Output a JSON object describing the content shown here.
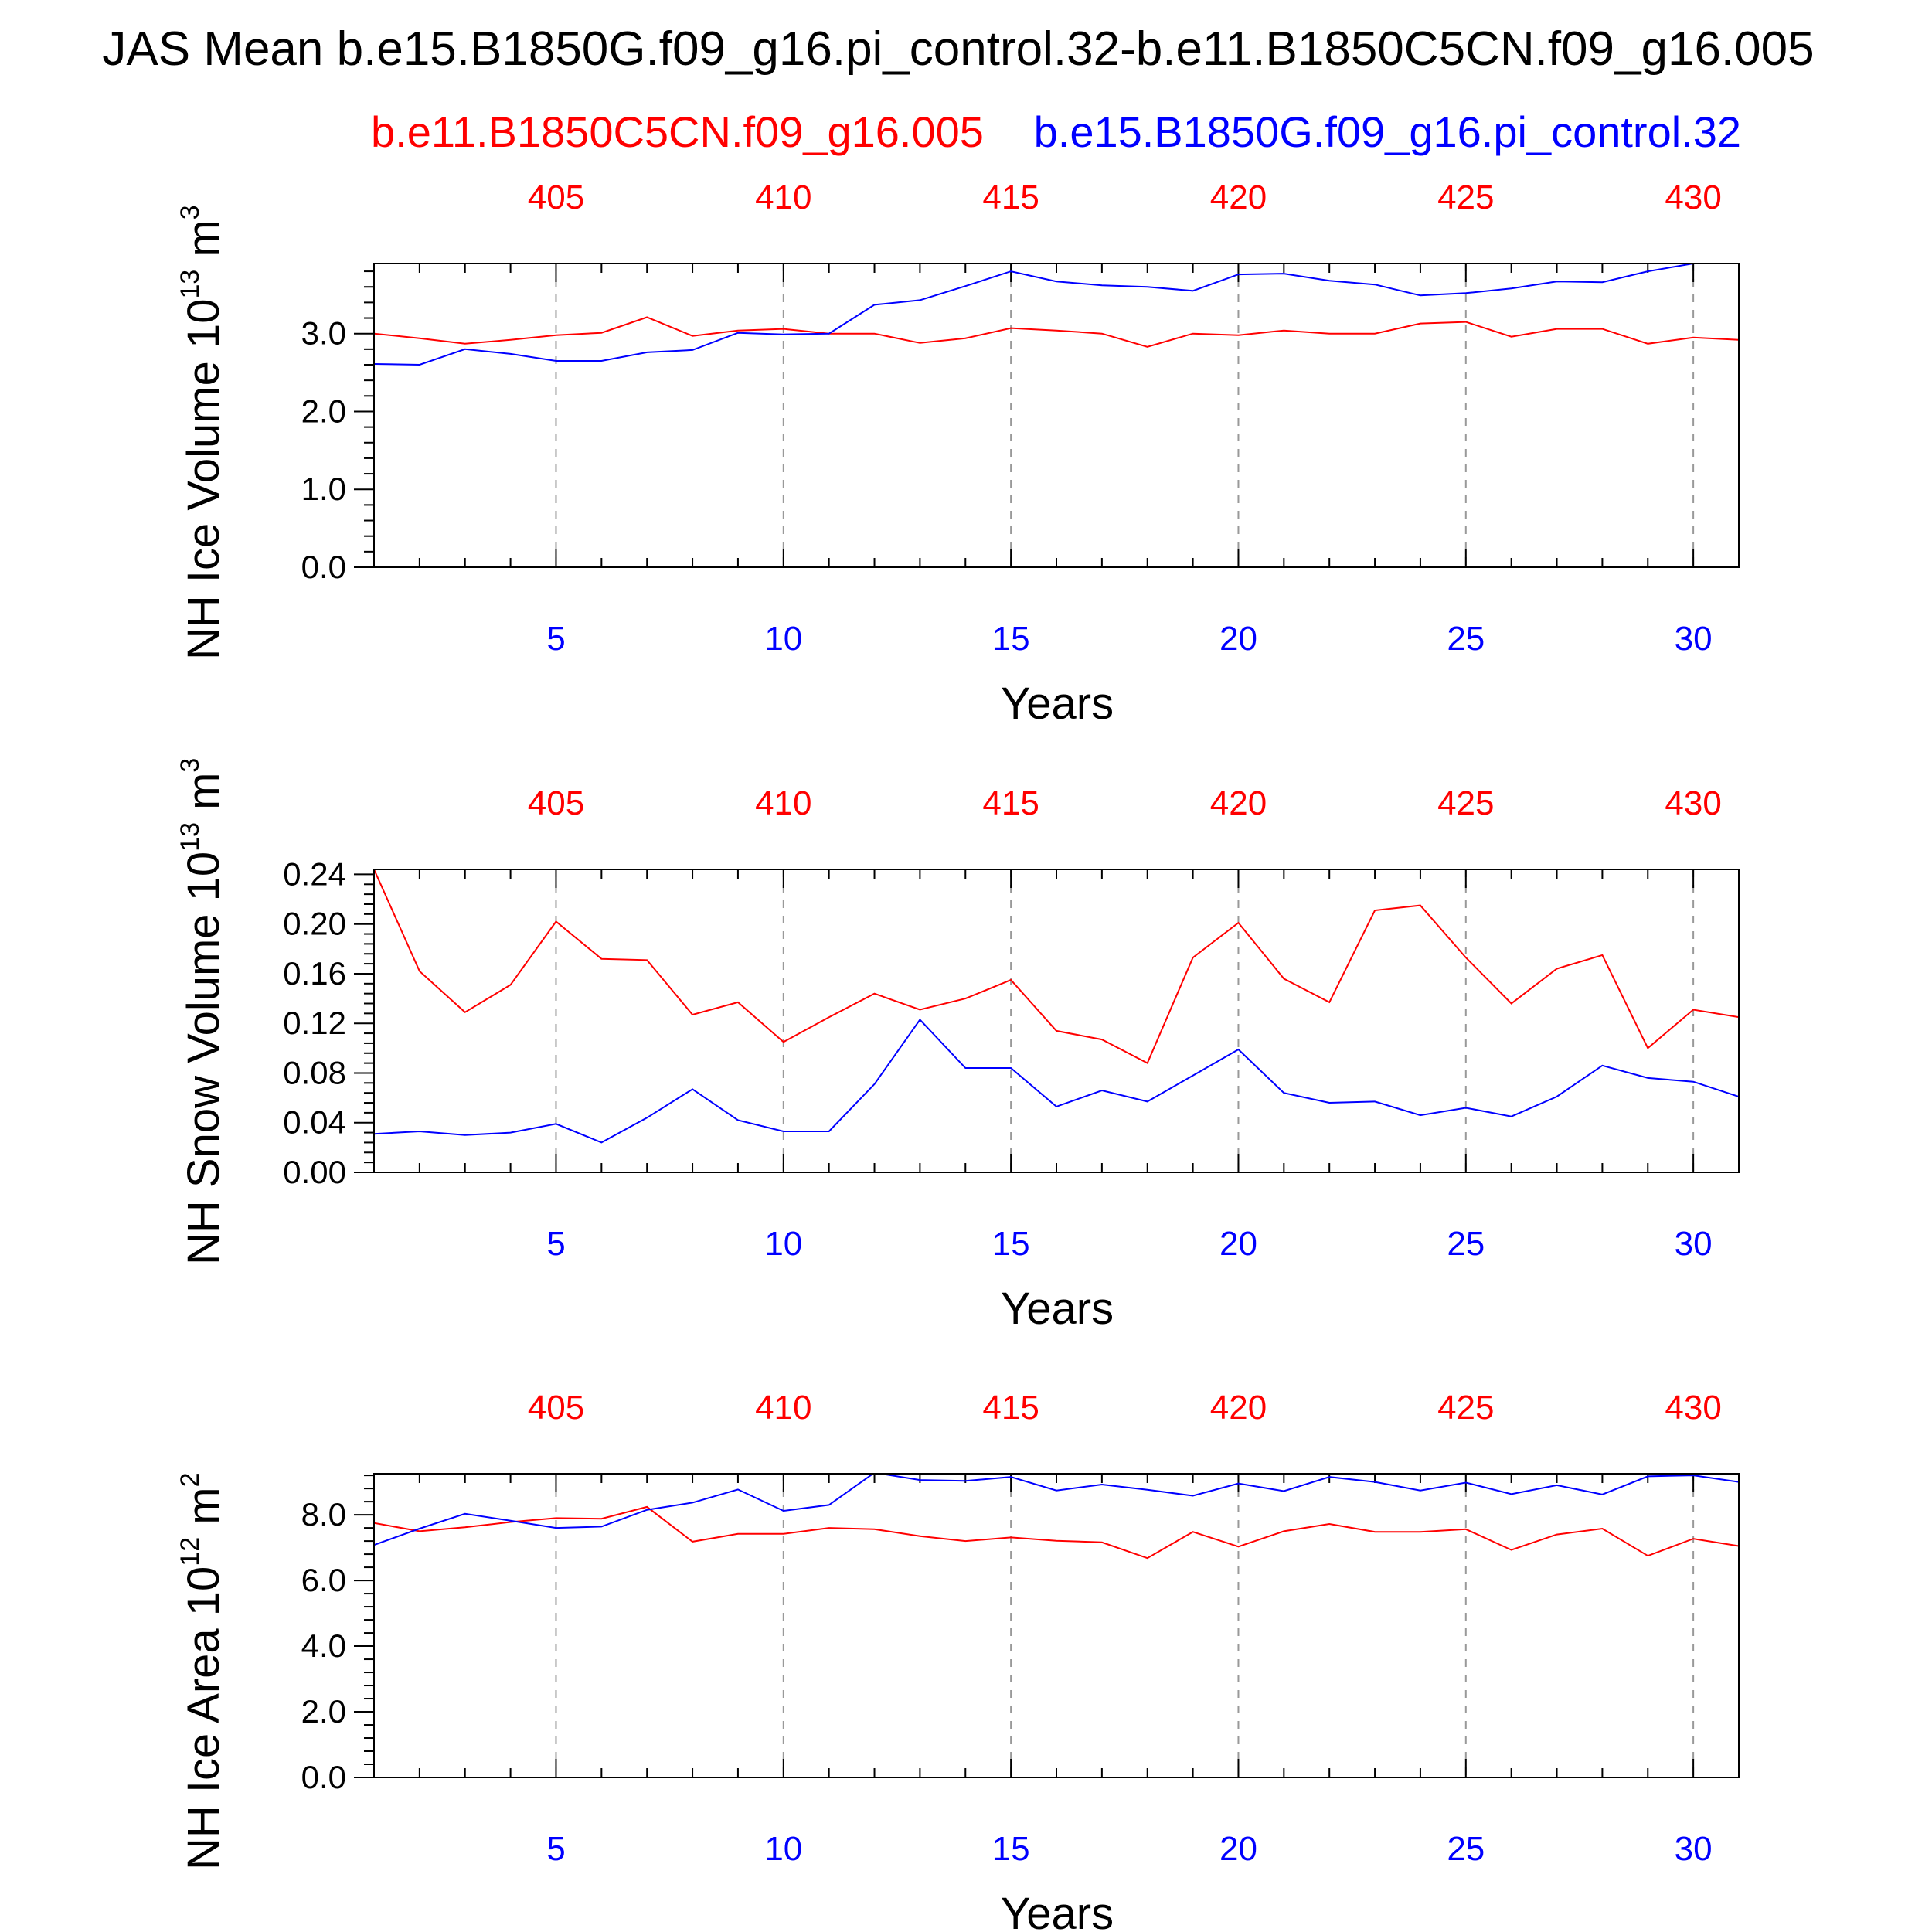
{
  "header": {
    "title": "JAS Mean b.e15.B1850G.f09_g16.pi_control.32-b.e11.B1850C5CN.f09_g16.005",
    "case_red": "b.e11.B1850C5CN.f09_g16.005",
    "case_blue": "b.e15.B1850G.f09_g16.pi_control.32"
  },
  "colors": {
    "red_series": "#ff0000",
    "blue_series": "#0000ff",
    "axis": "#000000",
    "grid": "#999999"
  },
  "chart_data": [
    {
      "type": "line",
      "ylabel_main": "NH Ice Volume 10",
      "ylabel_exp": "13",
      "ylabel_unit": "m",
      "ylabel_unit_exp": "3",
      "xlabel": "Years",
      "xlim": [
        1,
        31
      ],
      "ylim": [
        0,
        3.9
      ],
      "yticks": [
        0,
        1,
        2,
        3
      ],
      "ytick_labels": [
        "0.0",
        "1.0",
        "2.0",
        "3.0"
      ],
      "xticks_bottom": [
        5,
        10,
        15,
        20,
        25,
        30
      ],
      "xtick_labels_bottom": [
        "5",
        "10",
        "15",
        "20",
        "25",
        "30"
      ],
      "xtick_labels_top": [
        "405",
        "410",
        "415",
        "420",
        "425",
        "430"
      ],
      "grid": "vertical dashed at major x ticks",
      "x": [
        1,
        2,
        3,
        4,
        5,
        6,
        7,
        8,
        9,
        10,
        11,
        12,
        13,
        14,
        15,
        16,
        17,
        18,
        19,
        20,
        21,
        22,
        23,
        24,
        25,
        26,
        27,
        28,
        29,
        30,
        31
      ],
      "series": [
        {
          "color": "#ff0000",
          "values": [
            3.0,
            2.94,
            2.87,
            2.92,
            2.98,
            3.01,
            3.21,
            2.97,
            3.04,
            3.06,
            3.0,
            3.0,
            2.88,
            2.94,
            3.07,
            3.04,
            3.0,
            2.83,
            3.0,
            2.98,
            3.04,
            3.0,
            3.0,
            3.13,
            3.15,
            2.96,
            3.06,
            3.06,
            2.87,
            2.95,
            2.92
          ]
        },
        {
          "color": "#0000ff",
          "values": [
            2.61,
            2.6,
            2.8,
            2.74,
            2.65,
            2.65,
            2.76,
            2.79,
            3.01,
            2.99,
            3.0,
            3.37,
            3.43,
            3.61,
            3.8,
            3.67,
            3.62,
            3.6,
            3.55,
            3.76,
            3.77,
            3.68,
            3.63,
            3.49,
            3.52,
            3.58,
            3.67,
            3.66,
            3.8,
            3.9,
            3.96
          ]
        }
      ]
    },
    {
      "type": "line",
      "ylabel_main": "NH Snow Volume 10",
      "ylabel_exp": "13",
      "ylabel_unit": "m",
      "ylabel_unit_exp": "3",
      "xlabel": "Years",
      "xlim": [
        1,
        31
      ],
      "ylim": [
        0,
        0.244
      ],
      "yticks": [
        0,
        0.04,
        0.08,
        0.12,
        0.16,
        0.2,
        0.24
      ],
      "ytick_labels": [
        "0.00",
        "0.04",
        "0.08",
        "0.12",
        "0.16",
        "0.20",
        "0.24"
      ],
      "xticks_bottom": [
        5,
        10,
        15,
        20,
        25,
        30
      ],
      "xtick_labels_bottom": [
        "5",
        "10",
        "15",
        "20",
        "25",
        "30"
      ],
      "xtick_labels_top": [
        "405",
        "410",
        "415",
        "420",
        "425",
        "430"
      ],
      "grid": "vertical dashed at major x ticks",
      "x": [
        1,
        2,
        3,
        4,
        5,
        6,
        7,
        8,
        9,
        10,
        11,
        12,
        13,
        14,
        15,
        16,
        17,
        18,
        19,
        20,
        21,
        22,
        23,
        24,
        25,
        26,
        27,
        28,
        29,
        30,
        31
      ],
      "series": [
        {
          "color": "#ff0000",
          "values": [
            0.244,
            0.162,
            0.129,
            0.151,
            0.202,
            0.172,
            0.171,
            0.127,
            0.137,
            0.105,
            0.125,
            0.144,
            0.131,
            0.14,
            0.155,
            0.114,
            0.107,
            0.088,
            0.173,
            0.201,
            0.156,
            0.137,
            0.211,
            0.215,
            0.173,
            0.136,
            0.164,
            0.175,
            0.1,
            0.131,
            0.125
          ]
        },
        {
          "color": "#0000ff",
          "values": [
            0.031,
            0.033,
            0.03,
            0.032,
            0.039,
            0.024,
            0.044,
            0.067,
            0.042,
            0.033,
            0.033,
            0.071,
            0.123,
            0.084,
            0.084,
            0.053,
            0.066,
            0.057,
            0.078,
            0.099,
            0.064,
            0.056,
            0.057,
            0.046,
            0.052,
            0.045,
            0.061,
            0.086,
            0.076,
            0.073,
            0.061
          ]
        }
      ]
    },
    {
      "type": "line",
      "ylabel_main": "NH Ice Area 10",
      "ylabel_exp": "12",
      "ylabel_unit": "m",
      "ylabel_unit_exp": "2",
      "xlabel": "Years",
      "xlim": [
        1,
        31
      ],
      "ylim": [
        0,
        9.25
      ],
      "yticks": [
        0,
        2,
        4,
        6,
        8
      ],
      "ytick_labels": [
        "0.0",
        "2.0",
        "4.0",
        "6.0",
        "8.0"
      ],
      "xticks_bottom": [
        5,
        10,
        15,
        20,
        25,
        30
      ],
      "xtick_labels_bottom": [
        "5",
        "10",
        "15",
        "20",
        "25",
        "30"
      ],
      "xtick_labels_top": [
        "405",
        "410",
        "415",
        "420",
        "425",
        "430"
      ],
      "grid": "vertical dashed at major x ticks",
      "x": [
        1,
        2,
        3,
        4,
        5,
        6,
        7,
        8,
        9,
        10,
        11,
        12,
        13,
        14,
        15,
        16,
        17,
        18,
        19,
        20,
        21,
        22,
        23,
        24,
        25,
        26,
        27,
        28,
        29,
        30,
        31
      ],
      "series": [
        {
          "color": "#ff0000",
          "values": [
            7.75,
            7.5,
            7.62,
            7.78,
            7.9,
            7.88,
            8.24,
            7.18,
            7.42,
            7.42,
            7.6,
            7.56,
            7.35,
            7.2,
            7.31,
            7.21,
            7.16,
            6.68,
            7.48,
            7.03,
            7.5,
            7.72,
            7.48,
            7.48,
            7.56,
            6.93,
            7.4,
            7.58,
            6.75,
            7.27,
            7.05
          ]
        },
        {
          "color": "#0000ff",
          "values": [
            7.08,
            7.58,
            8.03,
            7.82,
            7.6,
            7.64,
            8.15,
            8.37,
            8.77,
            8.12,
            8.3,
            9.28,
            9.06,
            9.03,
            9.15,
            8.74,
            8.92,
            8.76,
            8.58,
            8.95,
            8.72,
            9.15,
            9.0,
            8.74,
            8.98,
            8.63,
            8.9,
            8.62,
            9.17,
            9.2,
            9.0
          ]
        }
      ]
    }
  ]
}
